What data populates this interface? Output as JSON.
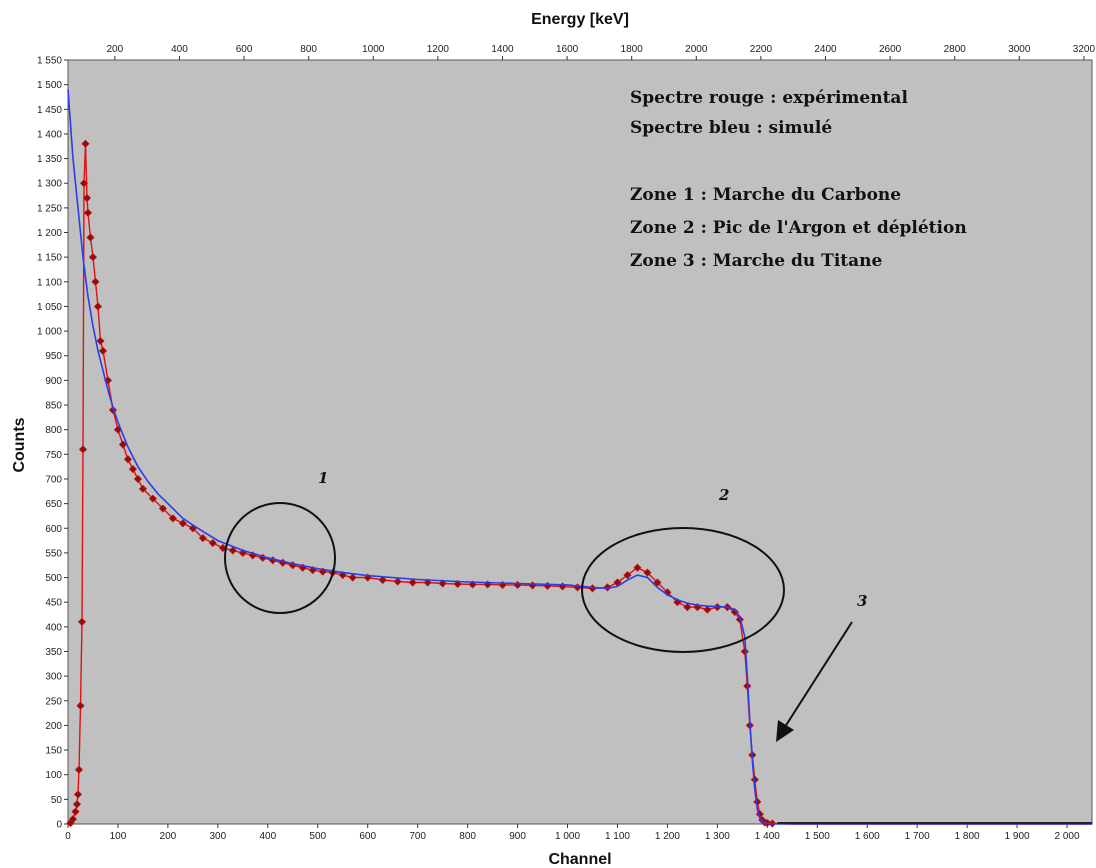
{
  "chart_data": {
    "type": "scatter",
    "xlabel": "Channel",
    "x2label": "Energy [keV]",
    "ylabel": "Counts",
    "xlim": [
      0,
      2050
    ],
    "x2lim": [
      55,
      3225
    ],
    "ylim": [
      0,
      1550
    ],
    "x_ticks": [
      0,
      100,
      200,
      300,
      400,
      500,
      600,
      700,
      800,
      900,
      1000,
      1100,
      1200,
      1300,
      1400,
      1500,
      1600,
      1700,
      1800,
      1900,
      2000
    ],
    "x_tick_labels": [
      "0",
      "100",
      "200",
      "300",
      "400",
      "500",
      "600",
      "700",
      "800",
      "900",
      "1 000",
      "1 100",
      "1 200",
      "1 300",
      "1 400",
      "1 500",
      "1 600",
      "1 700",
      "1 800",
      "1 900",
      "2 000"
    ],
    "x2_ticks": [
      200,
      400,
      600,
      800,
      1000,
      1200,
      1400,
      1600,
      1800,
      2000,
      2200,
      2400,
      2600,
      2800,
      3000,
      3200
    ],
    "x2_tick_labels": [
      "200",
      "400",
      "600",
      "800",
      "1000",
      "1200",
      "1400",
      "1600",
      "1800",
      "2000",
      "2200",
      "2400",
      "2600",
      "2800",
      "3000",
      "3200"
    ],
    "y_ticks": [
      0,
      50,
      100,
      150,
      200,
      250,
      300,
      350,
      400,
      450,
      500,
      550,
      600,
      650,
      700,
      750,
      800,
      850,
      900,
      950,
      1000,
      1050,
      1100,
      1150,
      1200,
      1250,
      1300,
      1350,
      1400,
      1450,
      1500,
      1550
    ],
    "y_tick_labels": [
      "0",
      "50",
      "100",
      "150",
      "200",
      "250",
      "300",
      "350",
      "400",
      "450",
      "500",
      "550",
      "600",
      "650",
      "700",
      "750",
      "800",
      "850",
      "900",
      "950",
      "1 000",
      "1 050",
      "1 100",
      "1 150",
      "1 200",
      "1 250",
      "1 300",
      "1 350",
      "1 400",
      "1 450",
      "1 500",
      "1 550"
    ],
    "grid": false,
    "colors": {
      "plot_background": "#c0c0c0",
      "experimental": "#e01010",
      "experimental_marker": "#8b1010",
      "simulated": "#2a3ee8"
    },
    "series": [
      {
        "name": "Spectre rouge : expérimental",
        "style": "line-markers",
        "x": [
          5,
          10,
          15,
          18,
          20,
          22,
          25,
          28,
          30,
          32,
          35,
          38,
          40,
          45,
          50,
          55,
          60,
          65,
          70,
          80,
          90,
          100,
          110,
          120,
          130,
          140,
          150,
          170,
          190,
          210,
          230,
          250,
          270,
          290,
          310,
          330,
          350,
          370,
          390,
          410,
          430,
          450,
          470,
          490,
          510,
          530,
          550,
          570,
          600,
          630,
          660,
          690,
          720,
          750,
          780,
          810,
          840,
          870,
          900,
          930,
          960,
          990,
          1020,
          1050,
          1080,
          1100,
          1120,
          1140,
          1160,
          1180,
          1200,
          1220,
          1240,
          1260,
          1280,
          1300,
          1320,
          1335,
          1345,
          1355,
          1360,
          1365,
          1370,
          1375,
          1380,
          1385,
          1390,
          1395,
          1400,
          1410,
          1450,
          1600,
          1800,
          2000,
          2050
        ],
        "y": [
          2,
          10,
          25,
          40,
          60,
          110,
          240,
          410,
          760,
          1300,
          1380,
          1270,
          1240,
          1190,
          1150,
          1100,
          1050,
          980,
          960,
          900,
          840,
          800,
          770,
          740,
          720,
          700,
          680,
          660,
          640,
          620,
          610,
          600,
          580,
          570,
          560,
          555,
          550,
          545,
          540,
          535,
          530,
          525,
          520,
          515,
          512,
          510,
          505,
          500,
          500,
          495,
          492,
          490,
          490,
          488,
          487,
          486,
          486,
          485,
          485,
          484,
          483,
          482,
          480,
          478,
          480,
          490,
          505,
          520,
          510,
          490,
          470,
          450,
          440,
          440,
          435,
          440,
          440,
          430,
          415,
          350,
          280,
          200,
          140,
          90,
          45,
          20,
          8,
          3,
          2,
          1,
          0,
          0,
          0,
          0,
          0
        ]
      },
      {
        "name": "Spectre bleu : simulé",
        "style": "line",
        "x": [
          0,
          5,
          10,
          20,
          30,
          40,
          50,
          60,
          70,
          80,
          90,
          100,
          120,
          140,
          160,
          180,
          200,
          230,
          260,
          300,
          350,
          400,
          450,
          500,
          550,
          600,
          700,
          800,
          900,
          1000,
          1050,
          1080,
          1100,
          1120,
          1140,
          1160,
          1180,
          1200,
          1220,
          1240,
          1260,
          1280,
          1300,
          1320,
          1335,
          1345,
          1355,
          1360,
          1365,
          1370,
          1375,
          1380,
          1385,
          1390,
          1400,
          1420,
          1500,
          1700,
          2050
        ],
        "y": [
          1490,
          1420,
          1350,
          1250,
          1150,
          1070,
          1010,
          960,
          920,
          880,
          845,
          815,
          765,
          725,
          695,
          670,
          650,
          620,
          600,
          575,
          555,
          540,
          528,
          518,
          510,
          504,
          496,
          491,
          488,
          485,
          480,
          478,
          482,
          495,
          505,
          500,
          480,
          465,
          455,
          448,
          444,
          442,
          441,
          440,
          435,
          420,
          380,
          300,
          210,
          130,
          70,
          30,
          12,
          4,
          1,
          0,
          0,
          0,
          0
        ]
      }
    ],
    "annotations": {
      "legend_lines": [
        "Spectre rouge : expérimental",
        "Spectre bleu : simulé"
      ],
      "zone_lines": [
        "Zone 1 : Marche du Carbone",
        "Zone 2 : Pic de l'Argon et déplétion",
        "Zone 3 : Marche du Titane"
      ],
      "zone_labels": [
        "1",
        "2",
        "3"
      ]
    }
  }
}
